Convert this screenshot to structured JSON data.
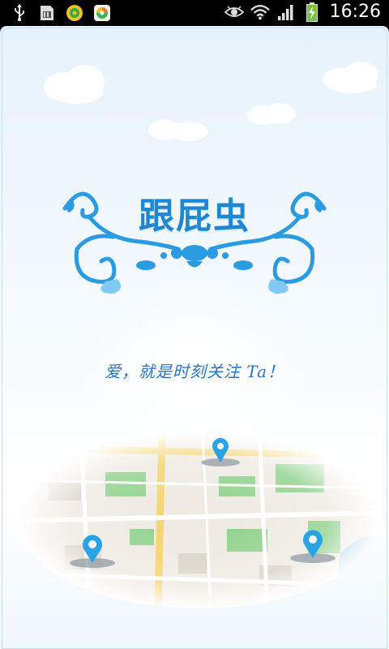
{
  "status_bar": {
    "time": "16:26",
    "left_icons": [
      "usb-icon",
      "sim-toolkit-icon",
      "game-app-icon",
      "browser-app-icon"
    ],
    "right_icons": [
      "eye-icon",
      "wifi-icon",
      "signal-icon",
      "battery-charging-icon"
    ]
  },
  "splash": {
    "app_title": "跟屁虫",
    "slogan": "爱，就是时刻关注 Ta！"
  },
  "colors": {
    "accent": "#1f86cf",
    "slogan": "#2b74c3",
    "map_green": "#8fd18b",
    "map_road": "#f3d36b",
    "pin": "#2aa3e6"
  }
}
